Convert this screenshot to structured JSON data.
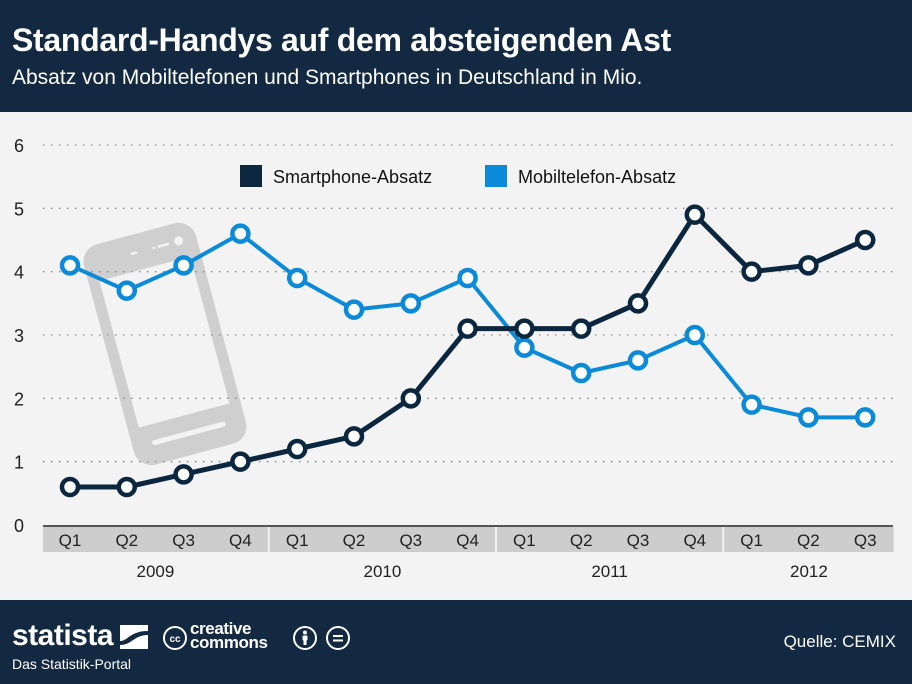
{
  "header": {
    "title": "Standard-Handys auf dem absteigenden Ast",
    "subtitle": "Absatz von Mobiltelefonen und Smartphones in Deutschland in Mio."
  },
  "footer": {
    "brand": "statista",
    "tagline": "Das Statistik-Portal",
    "license_line1": "creative",
    "license_line2": "commons",
    "cc_badge": "cc",
    "source": "Quelle: CEMIX",
    "icons": [
      "statista-logo-icon",
      "cc-icon",
      "attribution-icon",
      "no-derivatives-icon"
    ]
  },
  "chart_data": {
    "type": "line",
    "title": "Standard-Handys auf dem absteigenden Ast",
    "subtitle": "Absatz von Mobiltelefonen und Smartphones in Deutschland in Mio.",
    "xlabel": "",
    "ylabel": "",
    "ylim": [
      0,
      6
    ],
    "yticks": [
      "0",
      "1",
      "2",
      "3",
      "4",
      "5",
      "6"
    ],
    "grid": true,
    "legend_position": "top-center",
    "categories": [
      "Q1",
      "Q2",
      "Q3",
      "Q4",
      "Q1",
      "Q2",
      "Q3",
      "Q4",
      "Q1",
      "Q2",
      "Q3",
      "Q4",
      "Q1",
      "Q2",
      "Q3"
    ],
    "year_groups": [
      {
        "label": "2009",
        "count": 4
      },
      {
        "label": "2010",
        "count": 4
      },
      {
        "label": "2011",
        "count": 4
      },
      {
        "label": "2012",
        "count": 3
      }
    ],
    "series": [
      {
        "name": "Smartphone-Absatz",
        "color": "#0b2740",
        "values": [
          0.6,
          0.6,
          0.8,
          1.0,
          1.2,
          1.4,
          2.0,
          3.1,
          3.1,
          3.1,
          3.5,
          4.9,
          4.0,
          4.1,
          4.5
        ]
      },
      {
        "name": "Mobiltelefon-Absatz",
        "color": "#0a8ad8",
        "values": [
          4.1,
          3.7,
          4.1,
          4.6,
          3.9,
          3.4,
          3.5,
          3.9,
          2.8,
          2.4,
          2.6,
          3.0,
          1.9,
          1.7,
          1.7
        ]
      }
    ]
  }
}
